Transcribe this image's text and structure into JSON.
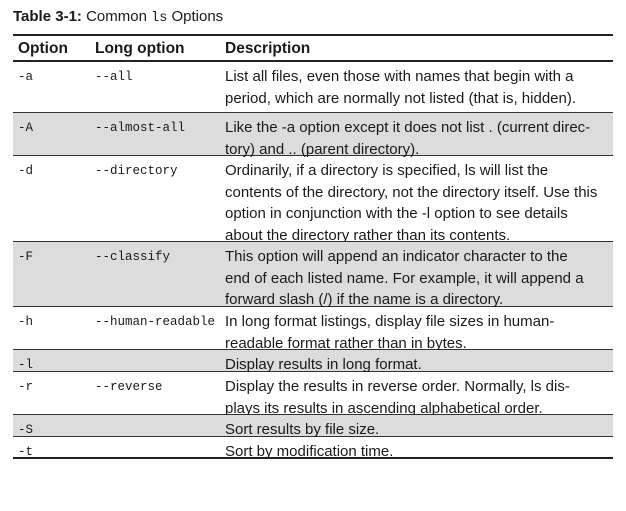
{
  "caption": {
    "label": "Table 3-1:",
    "title_prefix": "Common ",
    "title_code": "ls",
    "title_suffix": " Options"
  },
  "headers": {
    "option": "Option",
    "long_option": "Long option",
    "description": "Description"
  },
  "rows": [
    {
      "option": "-a",
      "long": "--all",
      "desc": [
        "List all files, even those with names that begin with a",
        "period, which are normally not listed (that is, hidden)."
      ]
    },
    {
      "option": "-A",
      "long": "--almost-all",
      "desc": [
        "Like the -a option except it does not list . (current direc-",
        "tory) and .. (parent directory)."
      ]
    },
    {
      "option": "-d",
      "long": "--directory",
      "desc": [
        "Ordinarily, if a directory is specified, ls will list the",
        "contents of the directory, not the directory itself. Use this",
        "option in conjunction with the -l option to see details",
        "about the directory rather than its contents."
      ]
    },
    {
      "option": "-F",
      "long": "--classify",
      "desc": [
        "This option will append an indicator character to the",
        "end of each listed name. For example, it will append a",
        "forward slash (/) if the name is a directory."
      ]
    },
    {
      "option": "-h",
      "long": "--human-readable",
      "desc": [
        "In long format listings, display file sizes in human-",
        "readable format rather than in bytes."
      ]
    },
    {
      "option": "-l",
      "long": "",
      "desc": [
        "Display results in long format."
      ]
    },
    {
      "option": "-r",
      "long": "--reverse",
      "desc": [
        "Display the results in reverse order. Normally, ls dis-",
        "plays its results in ascending alphabetical order."
      ]
    },
    {
      "option": "-S",
      "long": "",
      "desc": [
        "Sort results by file size."
      ]
    },
    {
      "option": "-t",
      "long": "",
      "desc": [
        "Sort by modification time."
      ]
    }
  ]
}
